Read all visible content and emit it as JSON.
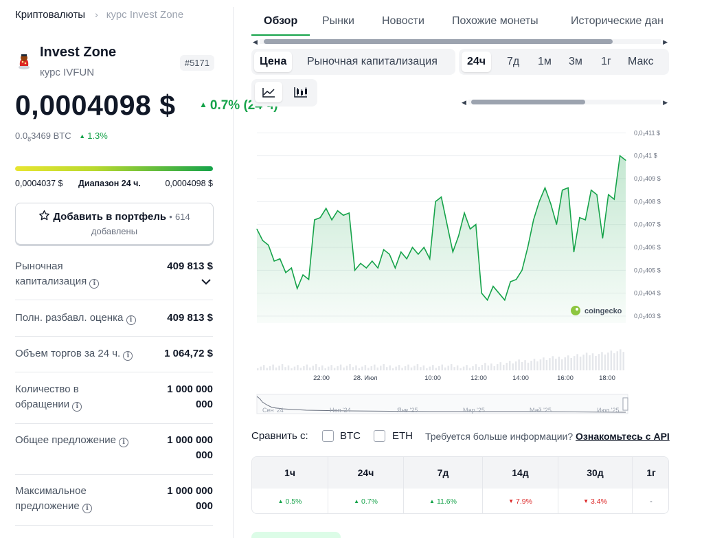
{
  "breadcrumb": {
    "root": "Криптовалюты",
    "sep": "›",
    "current": "курс Invest Zone"
  },
  "coin": {
    "name": "Invest Zone",
    "subtitle": "курс IVFUN",
    "rank": "#5171"
  },
  "price": {
    "value": "0,0004098 $",
    "change_pct": "0.7% (24 ч)",
    "change_dir": "up",
    "btc_prefix": "0.0",
    "btc_sub": "8",
    "btc_rest": "3469 BTC",
    "btc_change": "1.3%"
  },
  "range": {
    "low": "0,0004037 $",
    "label": "Диапазон 24 ч.",
    "high": "0,0004098 $"
  },
  "portfolio": {
    "label": "Добавить в портфель",
    "bullet": "•",
    "count": "614",
    "added": "добавлены"
  },
  "stats": [
    {
      "label": "Рыночная капитализация",
      "value": "409 813 $",
      "info": true,
      "expand": true
    },
    {
      "label": "Полн. разбавл. оценка",
      "value": "409 813 $",
      "info": true
    },
    {
      "label": "Объем торгов за 24 ч.",
      "value": "1 064,72 $",
      "info": true
    },
    {
      "label": "Количество в обращении",
      "value": "1 000 000 000",
      "info": true
    },
    {
      "label": "Общее предложение",
      "value": "1 000 000 000",
      "info": true
    },
    {
      "label": "Максимальное предложение",
      "value": "1 000 000 000",
      "info": true
    }
  ],
  "tabs": [
    "Обзор",
    "Рынки",
    "Новости",
    "Похожие монеты",
    "Исторические дан"
  ],
  "active_tab": "Обзор",
  "chart_type_seg": [
    "Цена",
    "Рыночная капитализация"
  ],
  "chart_type_active": "Цена",
  "range_seg": [
    "24ч",
    "7д",
    "1м",
    "3м",
    "1г",
    "Макс"
  ],
  "range_active": "24ч",
  "view_icons": [
    "line-chart-icon",
    "candlestick-icon"
  ],
  "watermark": "coingecko",
  "chart_data": {
    "type": "area",
    "title": "",
    "xlabel": "",
    "ylabel": "",
    "x_ticks": [
      "22:00",
      "28. Июл",
      "10:00",
      "12:00",
      "14:00",
      "16:00",
      "18:00"
    ],
    "y_ticks": [
      "0,0₃403 $",
      "0,0₃404 $",
      "0,0₃405 $",
      "0,0₃406 $",
      "0,0₃407 $",
      "0,0₃408 $",
      "0,0₃409 $",
      "0,0₃41 $",
      "0,0₃411 $"
    ],
    "ylim": [
      0.0004027,
      0.0004111
    ],
    "series": [
      {
        "values": [
          0.0004068,
          0.0004063,
          0.0004061,
          0.0004054,
          0.0004055,
          0.0004049,
          0.0004051,
          0.0004042,
          0.0004048,
          0.0004046,
          0.0004072,
          0.0004073,
          0.0004077,
          0.0004072,
          0.0004076,
          0.0004074,
          0.0004075,
          0.000405,
          0.0004053,
          0.0004051,
          0.0004054,
          0.0004051,
          0.0004059,
          0.0004057,
          0.0004051,
          0.0004058,
          0.0004055,
          0.000406,
          0.0004057,
          0.000406,
          0.0004055,
          0.000408,
          0.0004082,
          0.000407,
          0.0004058,
          0.0004065,
          0.0004075,
          0.0004068,
          0.000407,
          0.000404,
          0.0004037,
          0.0004043,
          0.000404,
          0.0004037,
          0.0004045,
          0.0004046,
          0.000405,
          0.000406,
          0.0004072,
          0.000408,
          0.0004086,
          0.0004079,
          0.000407,
          0.0004085,
          0.0004086,
          0.0004058,
          0.0004073,
          0.0004072,
          0.0004085,
          0.0004083,
          0.0004064,
          0.0004083,
          0.0004081,
          0.00041,
          0.0004098
        ]
      }
    ],
    "navigator_labels": [
      "Сен '24",
      "Ноя '24",
      "Янв '25",
      "Мар '25",
      "Май '25",
      "Июл '25"
    ],
    "grid": true
  },
  "compare": {
    "label": "Сравнить с:",
    "opt1": "BTC",
    "opt2": "ETH",
    "more": "Требуется больше информации?",
    "link": "Ознакомьтесь с API"
  },
  "performance": {
    "headers": [
      "1ч",
      "24ч",
      "7д",
      "14д",
      "30д",
      "1г"
    ],
    "values": [
      {
        "v": "0.5%",
        "dir": "up"
      },
      {
        "v": "0.7%",
        "dir": "up"
      },
      {
        "v": "11.6%",
        "dir": "up"
      },
      {
        "v": "7.9%",
        "dir": "down"
      },
      {
        "v": "3.4%",
        "dir": "down"
      },
      {
        "v": "-",
        "dir": "none"
      }
    ]
  },
  "colors": {
    "up": "#16a34a",
    "down": "#dc2626",
    "accent": "#16a34a"
  }
}
